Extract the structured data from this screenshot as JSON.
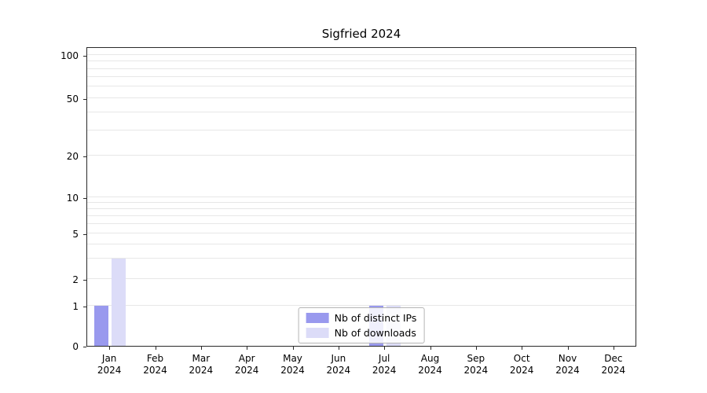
{
  "chart_data": {
    "type": "bar",
    "title": "Sigfried 2024",
    "scale": "symlog",
    "categories": [
      {
        "label": "Jan",
        "sub": "2024"
      },
      {
        "label": "Feb",
        "sub": "2024"
      },
      {
        "label": "Mar",
        "sub": "2024"
      },
      {
        "label": "Apr",
        "sub": "2024"
      },
      {
        "label": "May",
        "sub": "2024"
      },
      {
        "label": "Jun",
        "sub": "2024"
      },
      {
        "label": "Jul",
        "sub": "2024"
      },
      {
        "label": "Aug",
        "sub": "2024"
      },
      {
        "label": "Sep",
        "sub": "2024"
      },
      {
        "label": "Oct",
        "sub": "2024"
      },
      {
        "label": "Nov",
        "sub": "2024"
      },
      {
        "label": "Dec",
        "sub": "2024"
      }
    ],
    "series": [
      {
        "name": "Nb of distinct IPs",
        "color": "#9999ee",
        "values": [
          1,
          0,
          0,
          0,
          0,
          0,
          1,
          0,
          0,
          0,
          0,
          0
        ]
      },
      {
        "name": "Nb of downloads",
        "color": "#dcdcf8",
        "values": [
          3,
          0,
          0,
          0,
          0,
          0,
          1,
          0,
          0,
          0,
          0,
          0
        ]
      }
    ],
    "yticks": [
      0,
      1,
      2,
      5,
      10,
      20,
      50,
      100
    ],
    "ylim": [
      0,
      110
    ],
    "grid": true,
    "grid_color": "#e7e7e7",
    "axis_color": "#2a2a2a",
    "legend_position": "bottom-center"
  }
}
